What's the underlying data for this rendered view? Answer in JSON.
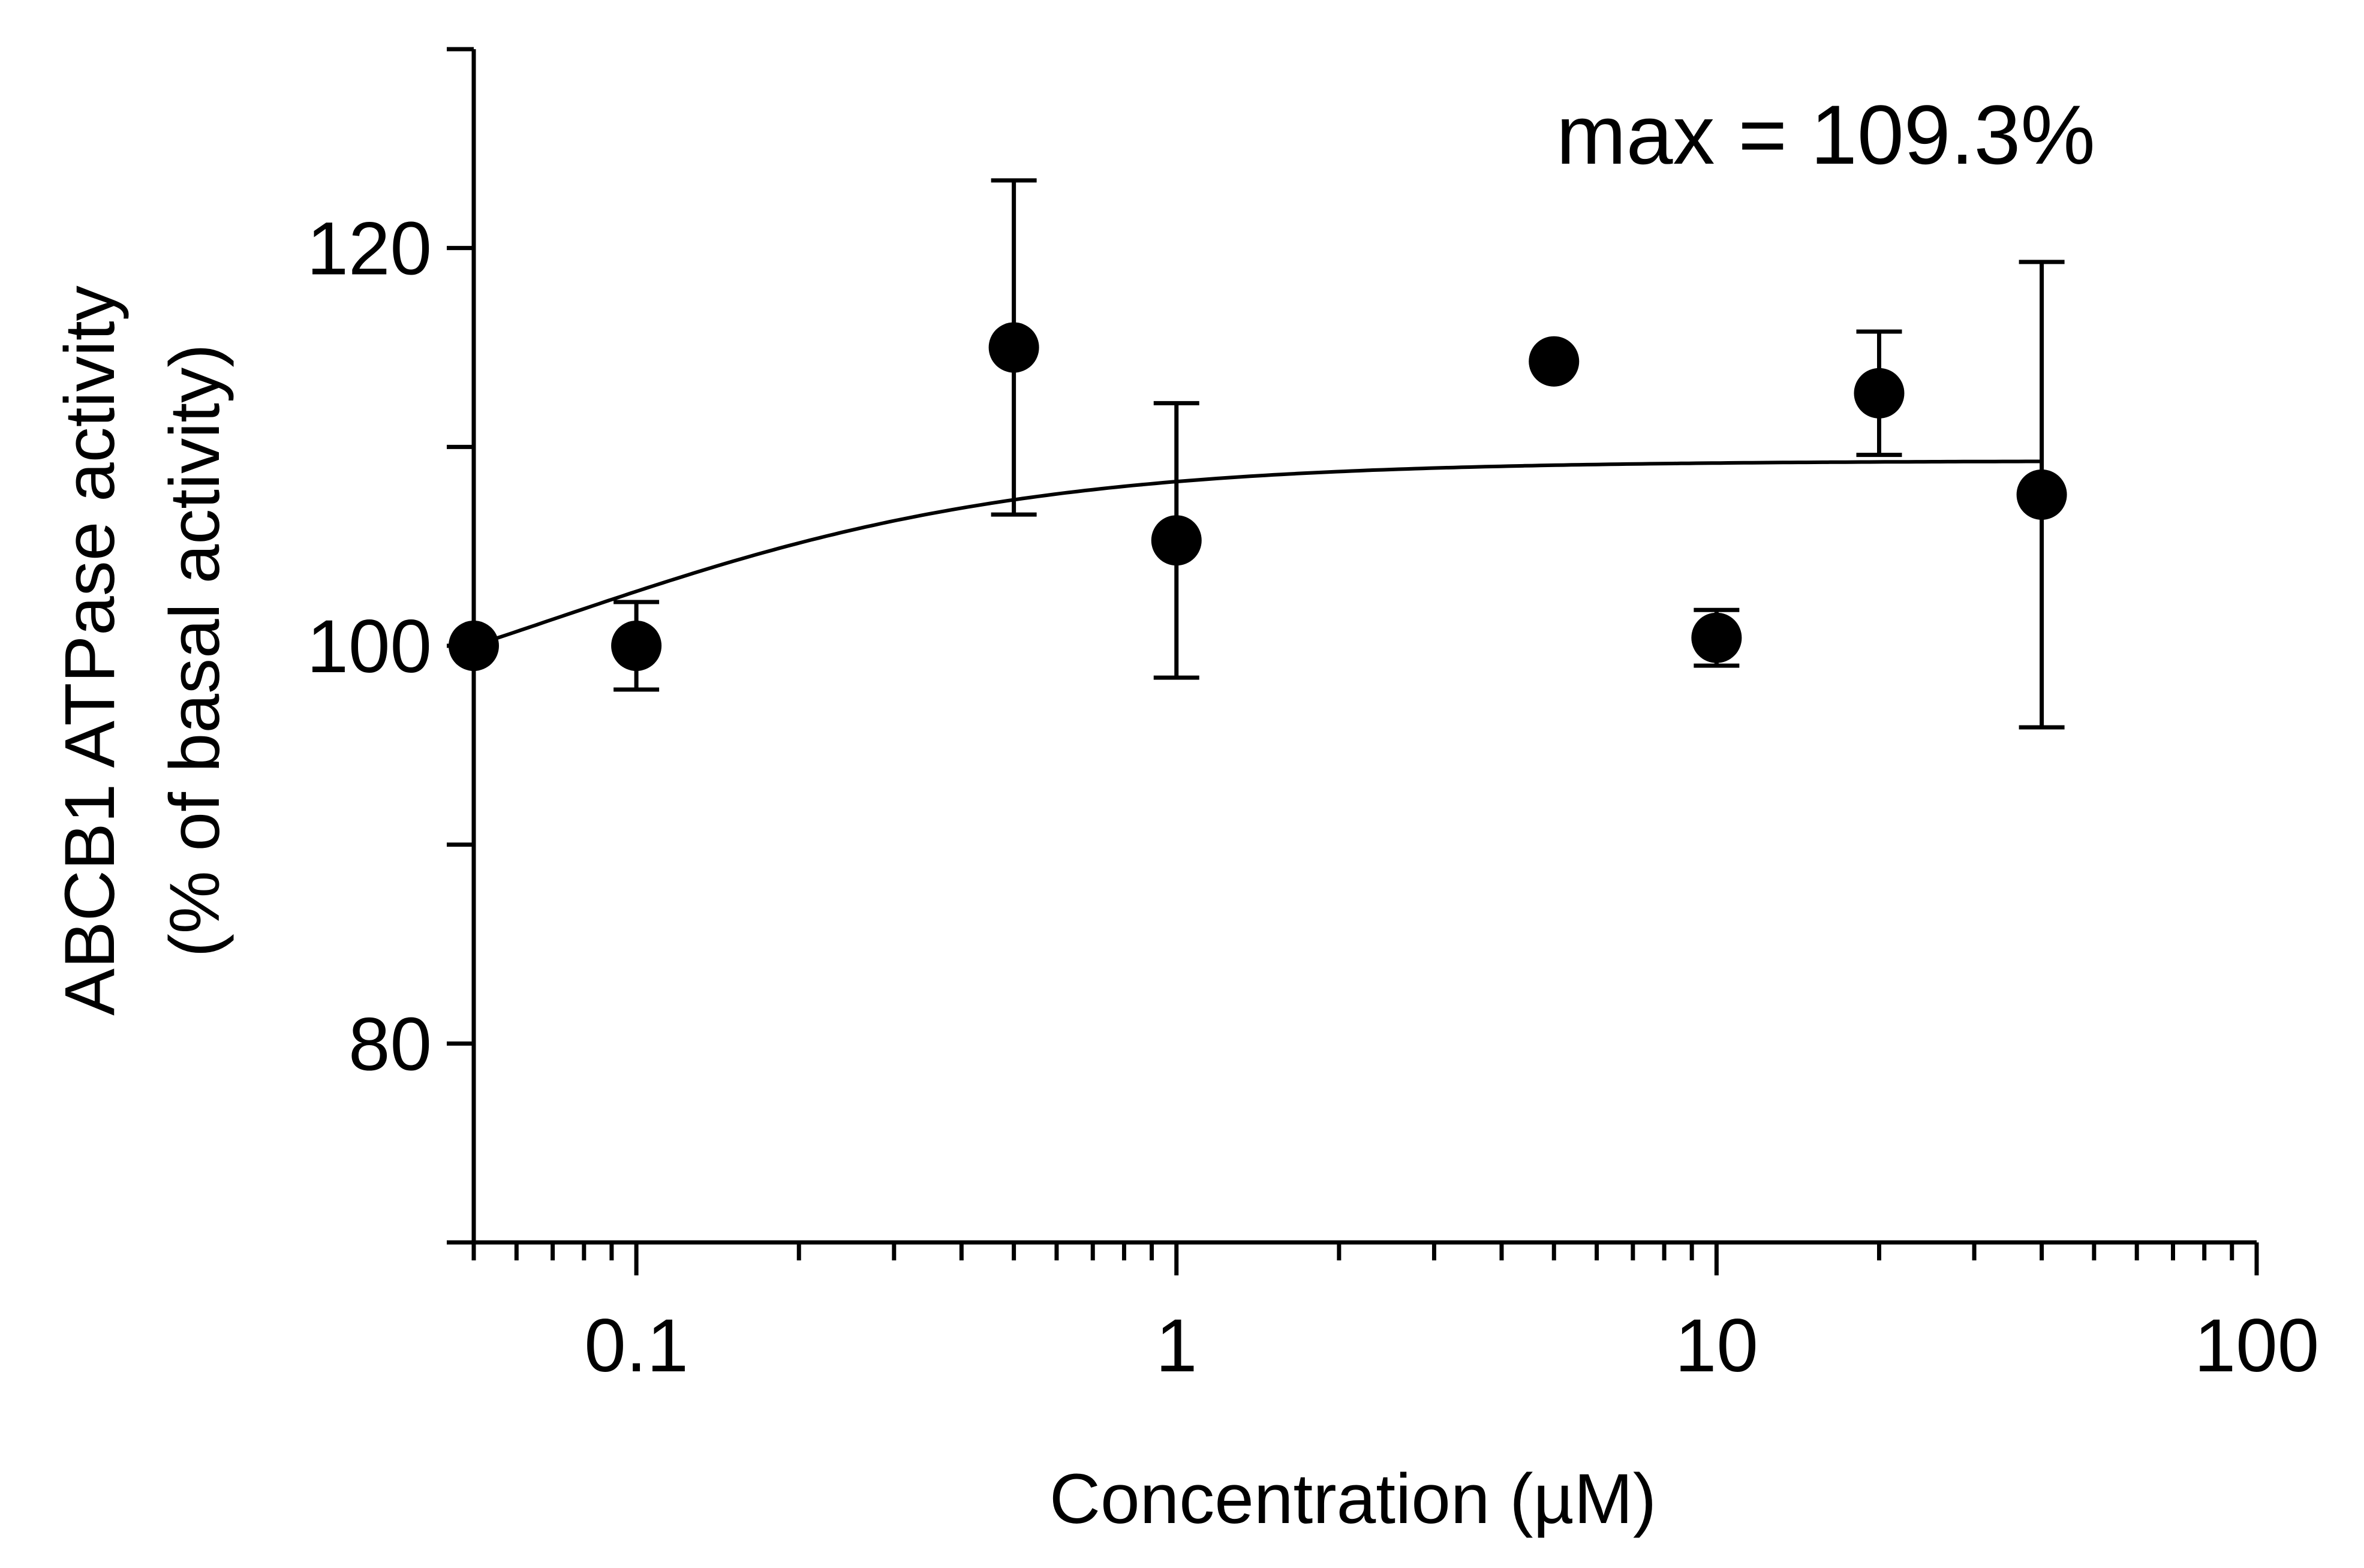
{
  "chart_data": {
    "type": "scatter",
    "title": "",
    "annotation": "max = 109.3%",
    "xlabel": "Concentration (µM)",
    "ylabel_line1": "ABCB1 ATPase activity",
    "ylabel_line2": "(% of basal activity)",
    "xscale": "log",
    "xlim": [
      0.05,
      100
    ],
    "ylim": [
      70,
      130
    ],
    "x_ticks": [
      {
        "value": 0.1,
        "label": "0.1"
      },
      {
        "value": 1,
        "label": "1"
      },
      {
        "value": 10,
        "label": "10"
      },
      {
        "value": 100,
        "label": "100"
      }
    ],
    "y_ticks": [
      {
        "value": 80,
        "label": "80"
      },
      {
        "value": 100,
        "label": "100"
      },
      {
        "value": 120,
        "label": "120"
      }
    ],
    "y_minor_ticks": [
      70,
      90,
      110,
      130
    ],
    "points": [
      {
        "x": 0.05,
        "y": 100.0,
        "err": 0
      },
      {
        "x": 0.1,
        "y": 100.0,
        "err": 2.2
      },
      {
        "x": 0.5,
        "y": 115.0,
        "err": 8.4
      },
      {
        "x": 1,
        "y": 105.3,
        "err": 6.9
      },
      {
        "x": 5,
        "y": 114.3,
        "err": 0
      },
      {
        "x": 10,
        "y": 100.4,
        "err": 1.4
      },
      {
        "x": 20,
        "y": 112.7,
        "err": 3.1
      },
      {
        "x": 40,
        "y": 107.6,
        "err": 11.7
      }
    ],
    "fit": {
      "model": "one-phase",
      "bottom": 100,
      "max": 109.3,
      "ec50": 0.12,
      "x_range": [
        0.05,
        40
      ]
    }
  }
}
